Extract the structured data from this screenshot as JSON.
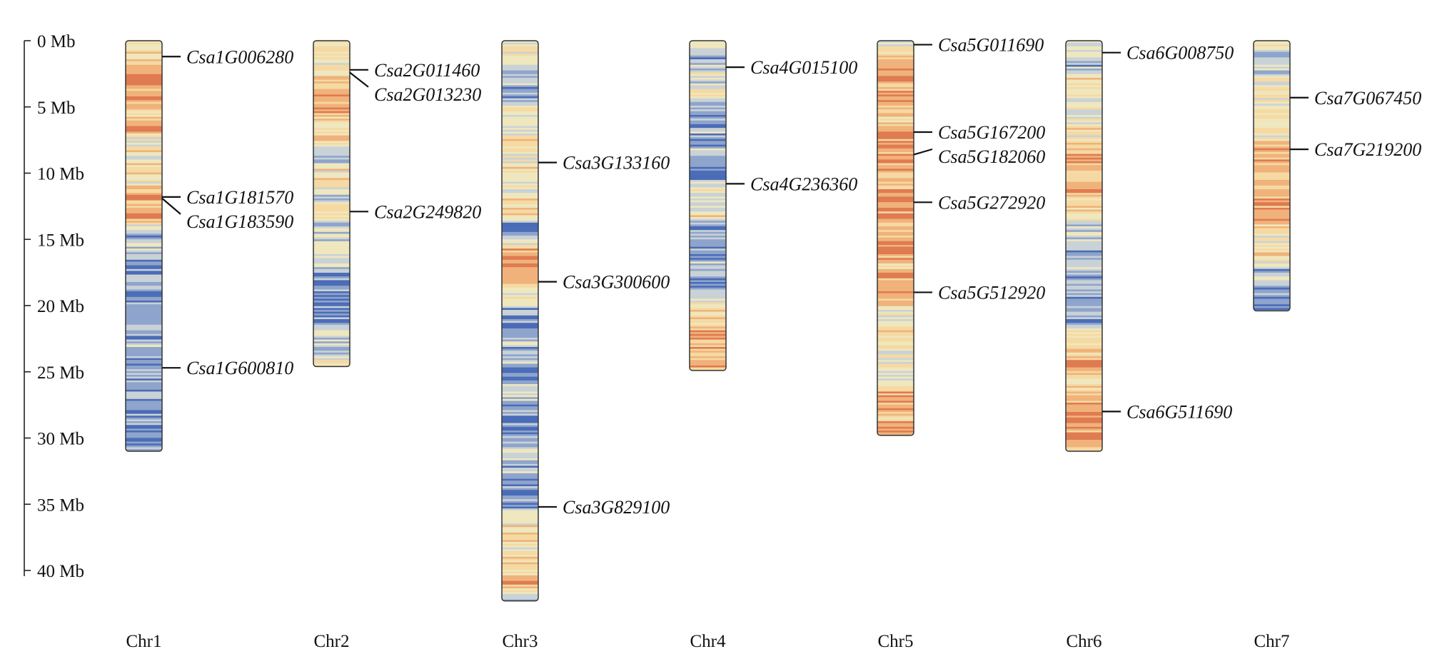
{
  "axis": {
    "unit": "Mb",
    "max": 40,
    "ticks": [
      {
        "value": 0,
        "label": "0 Mb"
      },
      {
        "value": 5,
        "label": "5 Mb"
      },
      {
        "value": 10,
        "label": "10 Mb"
      },
      {
        "value": 15,
        "label": "15 Mb"
      },
      {
        "value": 20,
        "label": "20 Mb"
      },
      {
        "value": 25,
        "label": "25 Mb"
      },
      {
        "value": 30,
        "label": "30 Mb"
      },
      {
        "value": 35,
        "label": "35 Mb"
      },
      {
        "value": 40,
        "label": "40 Mb"
      }
    ]
  },
  "density_colors": [
    "#4a6cb8",
    "#8ea4cc",
    "#c9d2d6",
    "#efe7bd",
    "#f6d9a2",
    "#f0b27a",
    "#e07a50"
  ],
  "chromosomes": [
    {
      "name": "Chr1",
      "length": 31,
      "genes": [
        {
          "name": "Csa1G006280",
          "pos": 1.2
        },
        {
          "name": "Csa1G181570",
          "pos": 11.8
        },
        {
          "name": "Csa1G183590",
          "pos": 11.9
        },
        {
          "name": "Csa1G600810",
          "pos": 24.7
        }
      ]
    },
    {
      "name": "Chr2",
      "length": 24.6,
      "genes": [
        {
          "name": "Csa2G011460",
          "pos": 2.2
        },
        {
          "name": "Csa2G013230",
          "pos": 2.4
        },
        {
          "name": "Csa2G249820",
          "pos": 12.9
        }
      ]
    },
    {
      "name": "Chr3",
      "length": 42.3,
      "genes": [
        {
          "name": "Csa3G133160",
          "pos": 9.2
        },
        {
          "name": "Csa3G300600",
          "pos": 18.2
        },
        {
          "name": "Csa3G829100",
          "pos": 35.2
        }
      ]
    },
    {
      "name": "Chr4",
      "length": 24.9,
      "genes": [
        {
          "name": "Csa4G015100",
          "pos": 2.0
        },
        {
          "name": "Csa4G236360",
          "pos": 10.8
        }
      ]
    },
    {
      "name": "Chr5",
      "length": 29.8,
      "genes": [
        {
          "name": "Csa5G011690",
          "pos": 0.3
        },
        {
          "name": "Csa5G167200",
          "pos": 6.9
        },
        {
          "name": "Csa5G182060",
          "pos": 8.6
        },
        {
          "name": "Csa5G272920",
          "pos": 12.2
        },
        {
          "name": "Csa5G512920",
          "pos": 19.0
        }
      ]
    },
    {
      "name": "Chr6",
      "length": 31,
      "genes": [
        {
          "name": "Csa6G008750",
          "pos": 0.9
        },
        {
          "name": "Csa6G511690",
          "pos": 28.0
        }
      ]
    },
    {
      "name": "Chr7",
      "length": 20.4,
      "genes": [
        {
          "name": "Csa7G067450",
          "pos": 4.3
        },
        {
          "name": "Csa7G219200",
          "pos": 8.2
        }
      ]
    }
  ]
}
